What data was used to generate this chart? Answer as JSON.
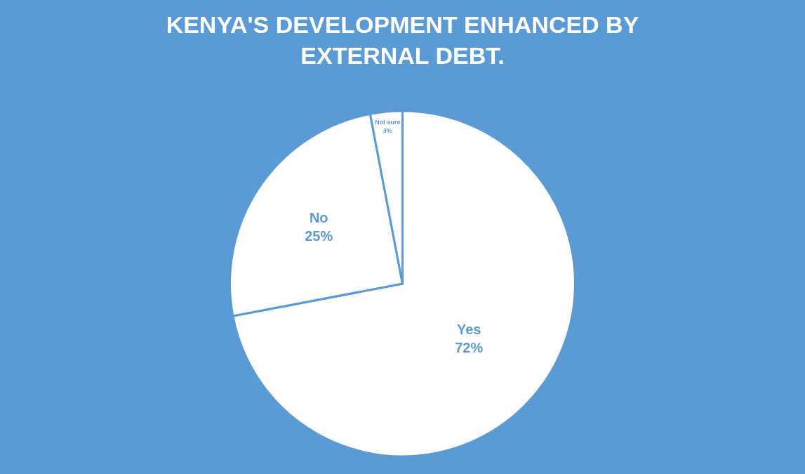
{
  "chart_data": {
    "type": "pie",
    "title": "KENYA'S DEVELOPMENT ENHANCED BY\nEXTERNAL DEBT.",
    "categories": [
      "Yes",
      "No",
      "Not sure"
    ],
    "values": [
      72,
      25,
      3
    ],
    "value_labels": [
      "72%",
      "25%",
      "3%"
    ],
    "colors": [
      "#ffffff",
      "#ffffff",
      "#ffffff"
    ],
    "legend": false
  }
}
